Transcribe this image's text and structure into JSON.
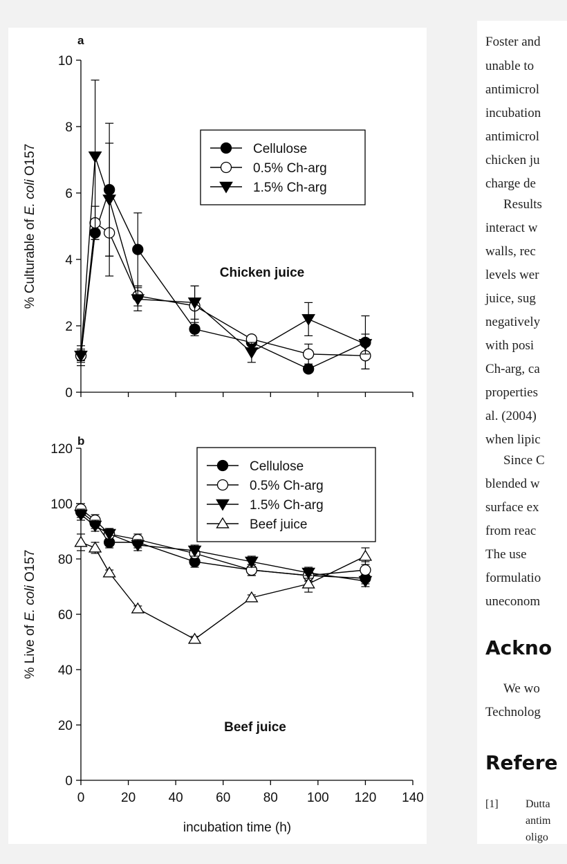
{
  "colors": {
    "background": "#f2f2f2",
    "panel": "#ffffff",
    "ink": "#111111"
  },
  "chart_data": [
    {
      "id": "a",
      "type": "line",
      "panel_label": "a",
      "annotation": "Chicken juice",
      "ylabel_parts": [
        "% Culturable of ",
        "E. coli",
        " O157"
      ],
      "xlim": [
        0,
        140
      ],
      "ylim": [
        0,
        10
      ],
      "yticks": [
        0,
        2,
        4,
        6,
        8,
        10
      ],
      "x_tick_labels_shown": false,
      "x": [
        0,
        6,
        12,
        24,
        48,
        72,
        96,
        120
      ],
      "series": [
        {
          "name": "Cellulose",
          "marker": "circle-filled",
          "values": [
            1.1,
            4.8,
            6.1,
            4.3,
            1.9,
            1.5,
            0.7,
            1.5
          ],
          "errors": [
            0.2,
            0.2,
            2.0,
            1.1,
            0.2,
            0.1,
            0.1,
            0.8
          ]
        },
        {
          "name": "0.5% Ch-arg",
          "marker": "circle-open",
          "values": [
            1.1,
            5.1,
            4.8,
            2.9,
            2.6,
            1.6,
            1.15,
            1.1
          ],
          "errors": [
            0.15,
            0.5,
            1.3,
            0.3,
            0.6,
            0.1,
            0.3,
            0.4
          ]
        },
        {
          "name": "1.5% Ch-arg",
          "marker": "triangle-down-filled",
          "values": [
            1.1,
            7.1,
            5.8,
            2.8,
            2.7,
            1.2,
            2.2,
            1.45
          ],
          "errors": [
            0.3,
            2.3,
            1.7,
            0.35,
            0.5,
            0.3,
            0.5,
            0.3
          ]
        }
      ]
    },
    {
      "id": "b",
      "type": "line",
      "panel_label": "b",
      "annotation": "Beef juice",
      "ylabel_parts": [
        "% Live of ",
        "E. coli",
        " O157"
      ],
      "xlabel": "incubation time (h)",
      "xlim": [
        0,
        140
      ],
      "ylim": [
        0,
        120
      ],
      "yticks": [
        0,
        20,
        40,
        60,
        80,
        100,
        120
      ],
      "xticks": [
        0,
        20,
        40,
        60,
        80,
        100,
        120,
        140
      ],
      "x_tick_labels_shown": true,
      "x": [
        0,
        6,
        12,
        24,
        48,
        72,
        96,
        120
      ],
      "series": [
        {
          "name": "Cellulose",
          "marker": "circle-filled",
          "values": [
            97,
            93,
            86,
            86,
            79,
            76,
            74,
            73
          ],
          "errors": [
            2,
            2,
            2,
            2,
            2,
            2,
            2,
            2
          ]
        },
        {
          "name": "0.5% Ch-arg",
          "marker": "circle-open",
          "values": [
            98,
            94,
            89,
            87,
            82,
            76,
            74,
            76
          ],
          "errors": [
            2,
            2,
            2,
            2,
            2,
            2,
            2,
            3
          ]
        },
        {
          "name": "1.5% Ch-arg",
          "marker": "triangle-down-filled",
          "values": [
            96,
            92,
            89,
            85,
            83,
            79,
            75,
            72
          ],
          "errors": [
            2,
            2,
            2,
            2,
            2,
            2,
            2,
            2
          ]
        },
        {
          "name": "Beef juice",
          "marker": "triangle-up-open",
          "values": [
            86,
            84,
            75,
            62,
            51,
            66,
            71,
            81
          ],
          "errors": [
            3,
            2,
            1,
            1,
            1,
            1,
            3,
            3
          ]
        }
      ]
    }
  ],
  "article": {
    "lines_top": [
      "Foster and",
      "unable to",
      "antimicrol",
      "incubation",
      "antimicrol",
      "chicken ju",
      "charge de"
    ],
    "para2_first": "Results",
    "lines_p2": [
      "interact w",
      "walls, rec",
      "levels wer",
      "juice, sug",
      "negatively",
      "with posi",
      "Ch-arg, ca",
      "properties",
      "al. (2004)",
      "when lipic"
    ],
    "para3_first": "Since C",
    "lines_p3": [
      "blended w",
      "surface ex",
      "from reac",
      "The use",
      "formulatio",
      "uneconom"
    ],
    "heading_ack": "Ackno",
    "ack_first": "We wo",
    "ack_second": "Technolog",
    "heading_refs": "Refere",
    "ref_num": "[1]",
    "ref_lines": [
      "Dutta",
      "antim",
      "oligo"
    ]
  }
}
